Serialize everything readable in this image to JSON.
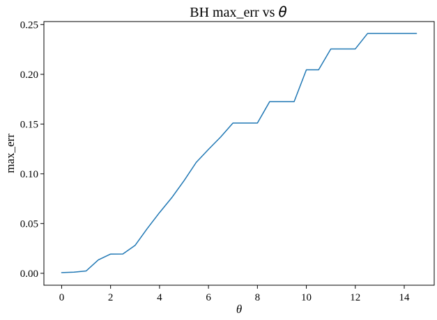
{
  "chart_data": {
    "type": "line",
    "title_main": "BH max_err vs ",
    "title_symbol": "θ",
    "xlabel": "θ",
    "ylabel": "max_err",
    "xlim": [
      -0.725,
      15.225
    ],
    "ylim": [
      -0.012,
      0.253
    ],
    "x_ticks": [
      0,
      2,
      4,
      6,
      8,
      10,
      12,
      14
    ],
    "y_ticks": [
      0.0,
      0.05,
      0.1,
      0.15,
      0.2,
      0.25
    ],
    "x_tick_labels": [
      "0",
      "2",
      "4",
      "6",
      "8",
      "10",
      "12",
      "14"
    ],
    "y_tick_labels": [
      "0.00",
      "0.05",
      "0.10",
      "0.15",
      "0.20",
      "0.25"
    ],
    "grid": false,
    "series": [
      {
        "color": "#1f77b4",
        "x": [
          0,
          0.5,
          1,
          1.5,
          2,
          2.5,
          3,
          3.5,
          4,
          4.5,
          5,
          5.5,
          6,
          6.5,
          7,
          7.5,
          8,
          8.5,
          9,
          9.5,
          10,
          10.5,
          11,
          11.5,
          12,
          12.5,
          13,
          13.5,
          14,
          14.5
        ],
        "y": [
          0.0007,
          0.0011,
          0.0023,
          0.0135,
          0.0193,
          0.0194,
          0.028,
          0.045,
          0.061,
          0.076,
          0.093,
          0.1115,
          0.1245,
          0.137,
          0.151,
          0.151,
          0.151,
          0.1725,
          0.1725,
          0.1725,
          0.2045,
          0.2045,
          0.2255,
          0.2255,
          0.2255,
          0.241,
          0.241,
          0.241,
          0.241,
          0.241
        ]
      }
    ]
  }
}
